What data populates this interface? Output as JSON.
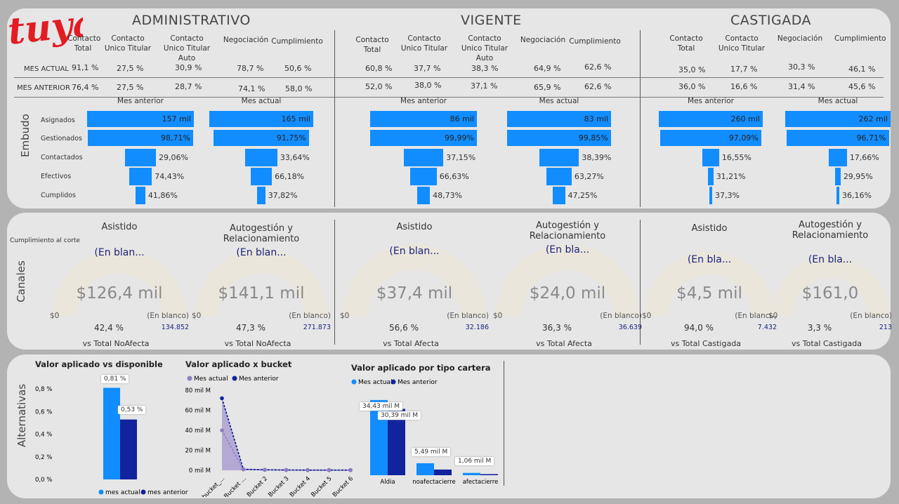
{
  "logo": "tuya",
  "colors": {
    "bar": "#118dff",
    "bar_dark": "#12239e",
    "gauge_track": "#ebe6dc",
    "purple": "#8e7cc3",
    "logo_red": "#e31b23"
  },
  "sections": [
    "ADMINISTRATIVO",
    "VIGENTE",
    "CASTIGADA"
  ],
  "kpi": {
    "row_labels": [
      "MES ACTUAL",
      "MES ANTERIOR"
    ],
    "administrativo": {
      "headers": [
        "Contacto Total",
        "Contacto Unico Titular",
        "Contacto Unico Titular Auto",
        "Negociación",
        "Cumplimiento"
      ],
      "actual": [
        "91,1 %",
        "27,5 %",
        "30,9 %",
        "78,7 %",
        "50,6 %"
      ],
      "anterior": [
        "76,4 %",
        "27,5 %",
        "28,7 %",
        "74,1 %",
        "58,0 %"
      ]
    },
    "vigente": {
      "headers": [
        "Contacto Total",
        "Contacto Unico Titular",
        "Contacto Unico Titular Auto",
        "Negociación",
        "Cumplimiento"
      ],
      "actual": [
        "60,8 %",
        "37,7 %",
        "38,3 %",
        "64,9 %",
        "62,6 %"
      ],
      "anterior": [
        "52,0 %",
        "38,0 %",
        "37,1 %",
        "65,9 %",
        "62,6 %"
      ]
    },
    "castigada": {
      "headers": [
        "Contacto Total",
        "Contacto Unico Titular",
        "Negociación",
        "Cumplimiento"
      ],
      "actual": [
        "35,0 %",
        "17,7 %",
        "30,3 %",
        "46,1 %"
      ],
      "anterior": [
        "36,0 %",
        "16,6 %",
        "31,4 %",
        "45,6 %"
      ]
    }
  },
  "embudo": {
    "side_label": "Embudo",
    "stages": [
      "Asignados",
      "Gestionados",
      "Contactados",
      "Efectivos",
      "Cumplidos"
    ],
    "funnels": [
      {
        "title": "Mes anterior",
        "labels": [
          "157 mil",
          "98,71%",
          "29,06%",
          "74,43%",
          "41,86%"
        ],
        "rel": [
          1.0,
          0.987,
          0.29,
          0.214,
          0.09
        ]
      },
      {
        "title": "Mes actual",
        "labels": [
          "165 mil",
          "91,75%",
          "33,64%",
          "66,18%",
          "37,82%"
        ],
        "rel": [
          1.0,
          0.9175,
          0.309,
          0.204,
          0.077
        ]
      },
      {
        "title": "Mes anterior",
        "labels": [
          "86 mil",
          "99,99%",
          "37,15%",
          "66,63%",
          "48,73%"
        ],
        "rel": [
          1.0,
          0.9999,
          0.372,
          0.247,
          0.12
        ]
      },
      {
        "title": "Mes actual",
        "labels": [
          "83 mil",
          "99,85%",
          "38,39%",
          "63,27%",
          "47,25%"
        ],
        "rel": [
          1.0,
          0.9985,
          0.383,
          0.242,
          0.115
        ]
      },
      {
        "title": "Mes anterior",
        "labels": [
          "260 mil",
          "97,09%",
          "16,55%",
          "31,21%",
          "37,3%"
        ],
        "rel": [
          1.0,
          0.971,
          0.161,
          0.05,
          0.019
        ]
      },
      {
        "title": "Mes actual",
        "labels": [
          "262 mil",
          "96,71%",
          "17,66%",
          "29,95%",
          "36,16%"
        ],
        "rel": [
          1.0,
          0.967,
          0.171,
          0.051,
          0.019
        ]
      }
    ]
  },
  "canales": {
    "side_label": "Canales",
    "corte_label": "Cumplimiento al corte",
    "gauges": [
      {
        "title": "Asistido",
        "card": "(En blan...",
        "value": "$126,4 mil",
        "min": "$0",
        "max": "(En blanco)",
        "pct": "42,4 %",
        "target": "134.852",
        "vs": "vs Total NoAfecta"
      },
      {
        "title": "Autogestión y Relacionamiento",
        "card": "(En blan...",
        "value": "$141,1 mil",
        "min": "$0",
        "max": "(En blanco)",
        "pct": "47,3 %",
        "target": "271.873",
        "vs": "vs Total NoAfecta"
      },
      {
        "title": "Asistido",
        "card": "(En blan...",
        "value": "$37,4 mil",
        "min": "$0",
        "max": "(En blanco)",
        "pct": "56,6 %",
        "target": "32.186",
        "vs": "vs Total Afecta"
      },
      {
        "title": "Autogestión y Relacionamiento",
        "card": "(En bla...",
        "value": "$24,0 mil",
        "min": "$0",
        "max": "(En blanco)",
        "pct": "36,3 %",
        "target": "36.639",
        "vs": "vs Total Afecta"
      },
      {
        "title": "Asistido",
        "card": "(En bla...",
        "value": "$4,5 mil",
        "min": "$0",
        "max": "(En blanco)",
        "pct": "94,0 %",
        "target": "7.432",
        "vs": "vs Total Castigada"
      },
      {
        "title": "Autogestión y Relacionamiento",
        "card": "(En bla...",
        "value": "$161,0",
        "min": "$0",
        "max": "(En blanco)",
        "pct": "3,3 %",
        "target": "213",
        "vs": "vs Total Castigada"
      }
    ]
  },
  "alternativas": {
    "side_label": "Alternativas",
    "chart_data": [
      {
        "type": "bar",
        "title": "Valor aplicado vs disponible",
        "series": [
          {
            "name": "mes actual",
            "values": [
              0.81
            ]
          },
          {
            "name": "mes anterior",
            "values": [
              0.53
            ]
          }
        ],
        "data_labels": [
          "0,81 %",
          "0,53 %"
        ],
        "yticks": [
          "0,0 %",
          "0,2 %",
          "0,4 %",
          "0,6 %",
          "0,8 %"
        ],
        "ylim": [
          0,
          0.9
        ],
        "legend": "bottom"
      },
      {
        "type": "area",
        "title": "Valor aplicado x bucket",
        "categories": [
          "bucket_...",
          "Bucket ...",
          "Bucket 2",
          "Bucket 3",
          "Bucket 4",
          "Bucket 5",
          "Bucket 6"
        ],
        "series": [
          {
            "name": "Mes actual",
            "values": [
              40,
              1,
              0.5,
              0.3,
              0.2,
              0.2,
              0.2
            ]
          },
          {
            "name": "Mes anterior",
            "values": [
              72,
              1,
              0.5,
              0.3,
              0.2,
              0.2,
              0.2
            ]
          }
        ],
        "yticks": [
          "0 mil M",
          "20 mil M",
          "40 mil M",
          "60 mil M",
          "80 mil M"
        ],
        "ylim": [
          0,
          80
        ],
        "legend": "top-left"
      },
      {
        "type": "bar",
        "title": "Valor aplicado por tipo cartera",
        "categories": [
          "Aldia",
          "noafectacierre",
          "afectacierre"
        ],
        "series": [
          {
            "name": "Mes actual",
            "values": [
              34.43,
              5.49,
              1.06
            ]
          },
          {
            "name": "Mes anterior",
            "values": [
              30.39,
              2.6,
              0.5
            ]
          }
        ],
        "data_labels": [
          "34,43 mil M",
          "30,39 mil M",
          "5,49 mil M",
          "1,06 mil M"
        ],
        "legend": "top-left"
      }
    ]
  }
}
